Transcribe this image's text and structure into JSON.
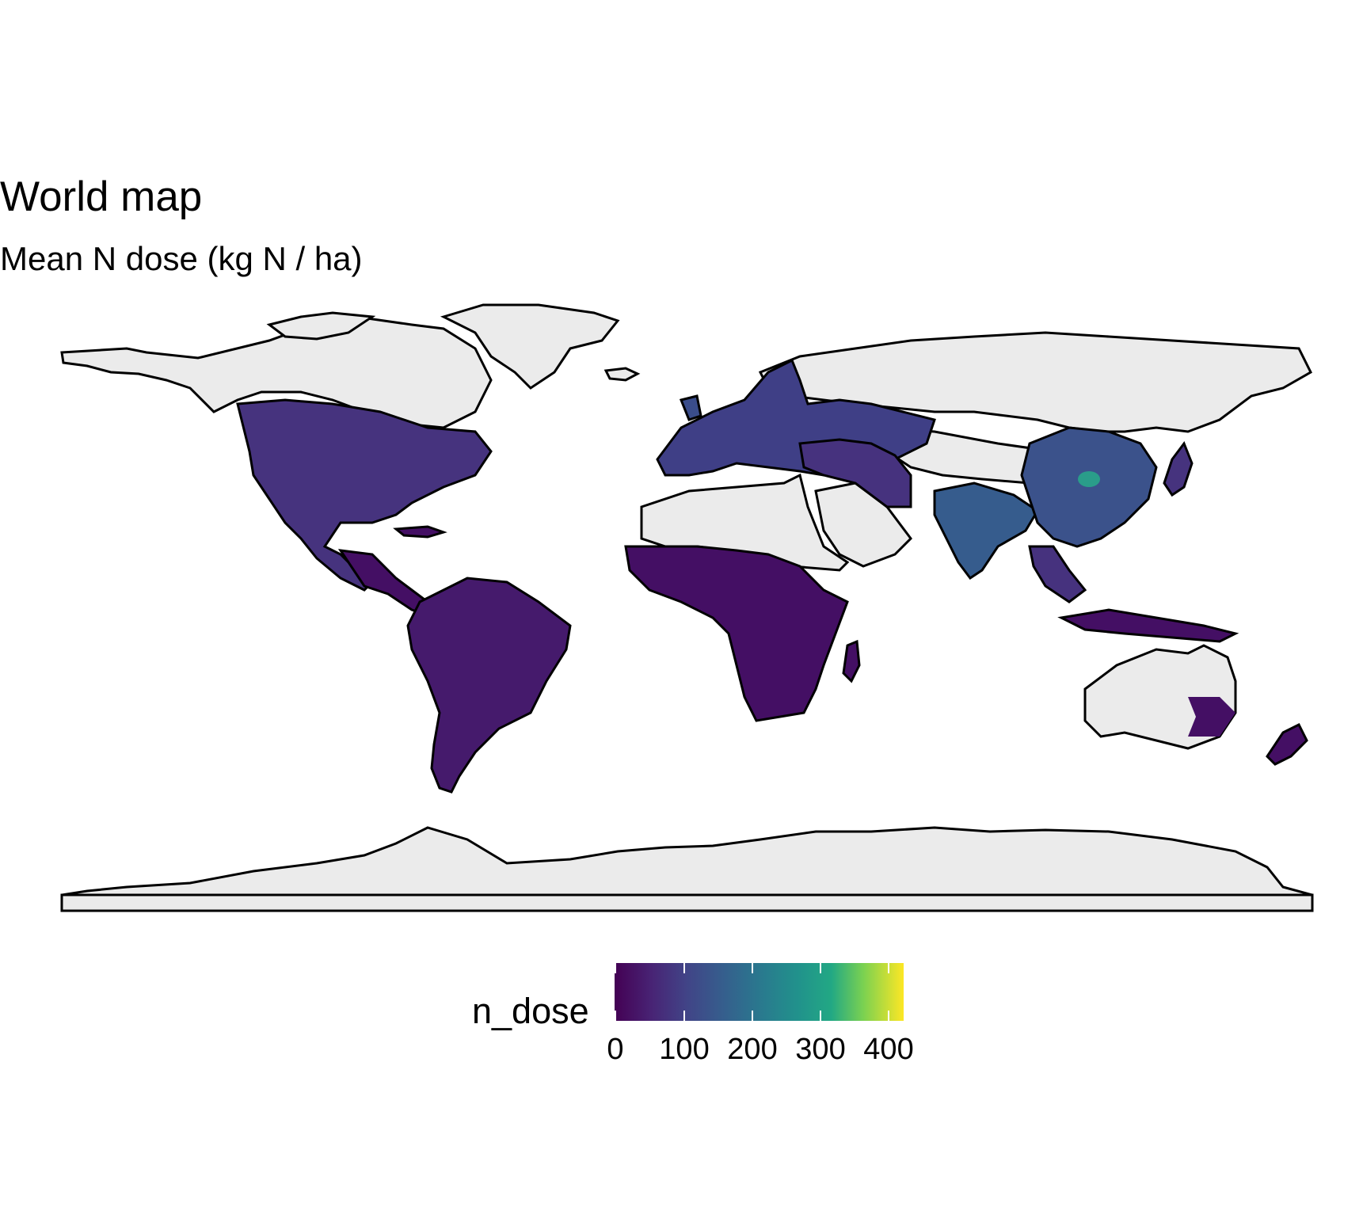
{
  "title": "World map",
  "subtitle": "Mean N dose (kg N / ha)",
  "legend": {
    "title": "n_dose",
    "ticks": [
      "0",
      "100",
      "200",
      "300",
      "400"
    ],
    "tick_values": [
      0,
      100,
      200,
      300,
      400
    ],
    "range": [
      0,
      420
    ],
    "palette": "viridis"
  },
  "colors": {
    "no_data_land": "#ebebeb",
    "low": "#440154",
    "mid_low": "#3b528b",
    "mid": "#21908c",
    "mid_high": "#5dc863",
    "high": "#fde725",
    "border": "#000000"
  }
}
